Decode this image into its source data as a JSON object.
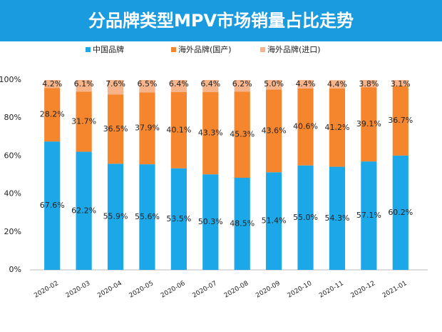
{
  "chart_data": {
    "type": "stacked_bar",
    "title": "分品牌类型MPV市场销量占比走势",
    "categories": [
      "2020-02",
      "2020-03",
      "2020-04",
      "2020-05",
      "2020-06",
      "2020-07",
      "2020-08",
      "2020-09",
      "2020-10",
      "2020-11",
      "2020-12",
      "2021-01"
    ],
    "series": [
      {
        "name": "中国品牌",
        "color": "#1ca8e8",
        "values": [
          67.6,
          62.2,
          55.9,
          55.6,
          53.5,
          50.3,
          48.5,
          51.4,
          55.0,
          54.3,
          57.1,
          60.2
        ],
        "value_labels": [
          "67.6%",
          "62.2%",
          "55.9%",
          "55.6%",
          "53.5%",
          "50.3%",
          "48.5%",
          "51.4%",
          "55.0%",
          "54.3%",
          "57.1%",
          "60.2%"
        ]
      },
      {
        "name": "海外品牌(国产)",
        "color": "#f5862e",
        "values": [
          28.2,
          31.7,
          36.5,
          37.9,
          40.1,
          43.3,
          45.3,
          43.6,
          40.6,
          41.2,
          39.1,
          36.7
        ],
        "value_labels": [
          "28.2%",
          "31.7%",
          "36.5%",
          "37.9%",
          "40.1%",
          "43.3%",
          "45.3%",
          "43.6%",
          "40.6%",
          "41.2%",
          "39.1%",
          "36.7%"
        ]
      },
      {
        "name": "海外品牌(进口)",
        "color": "#f7b48a",
        "values": [
          4.2,
          6.1,
          7.6,
          6.5,
          6.4,
          6.4,
          6.2,
          5.0,
          4.4,
          4.4,
          3.8,
          3.1
        ],
        "value_labels": [
          "4.2%",
          "6.1%",
          "7.6%",
          "6.5%",
          "6.4%",
          "6.4%",
          "6.2%",
          "5.0%",
          "4.4%",
          "4.4%",
          "3.8%",
          "3.1%"
        ]
      }
    ],
    "ylim": [
      0,
      100
    ],
    "yticks": [
      {
        "value": 0,
        "label": "0%"
      },
      {
        "value": 20,
        "label": "20%"
      },
      {
        "value": 40,
        "label": "40%"
      },
      {
        "value": 60,
        "label": "60%"
      },
      {
        "value": 80,
        "label": "80%"
      },
      {
        "value": 100,
        "label": "100%"
      }
    ],
    "legend": "top"
  }
}
